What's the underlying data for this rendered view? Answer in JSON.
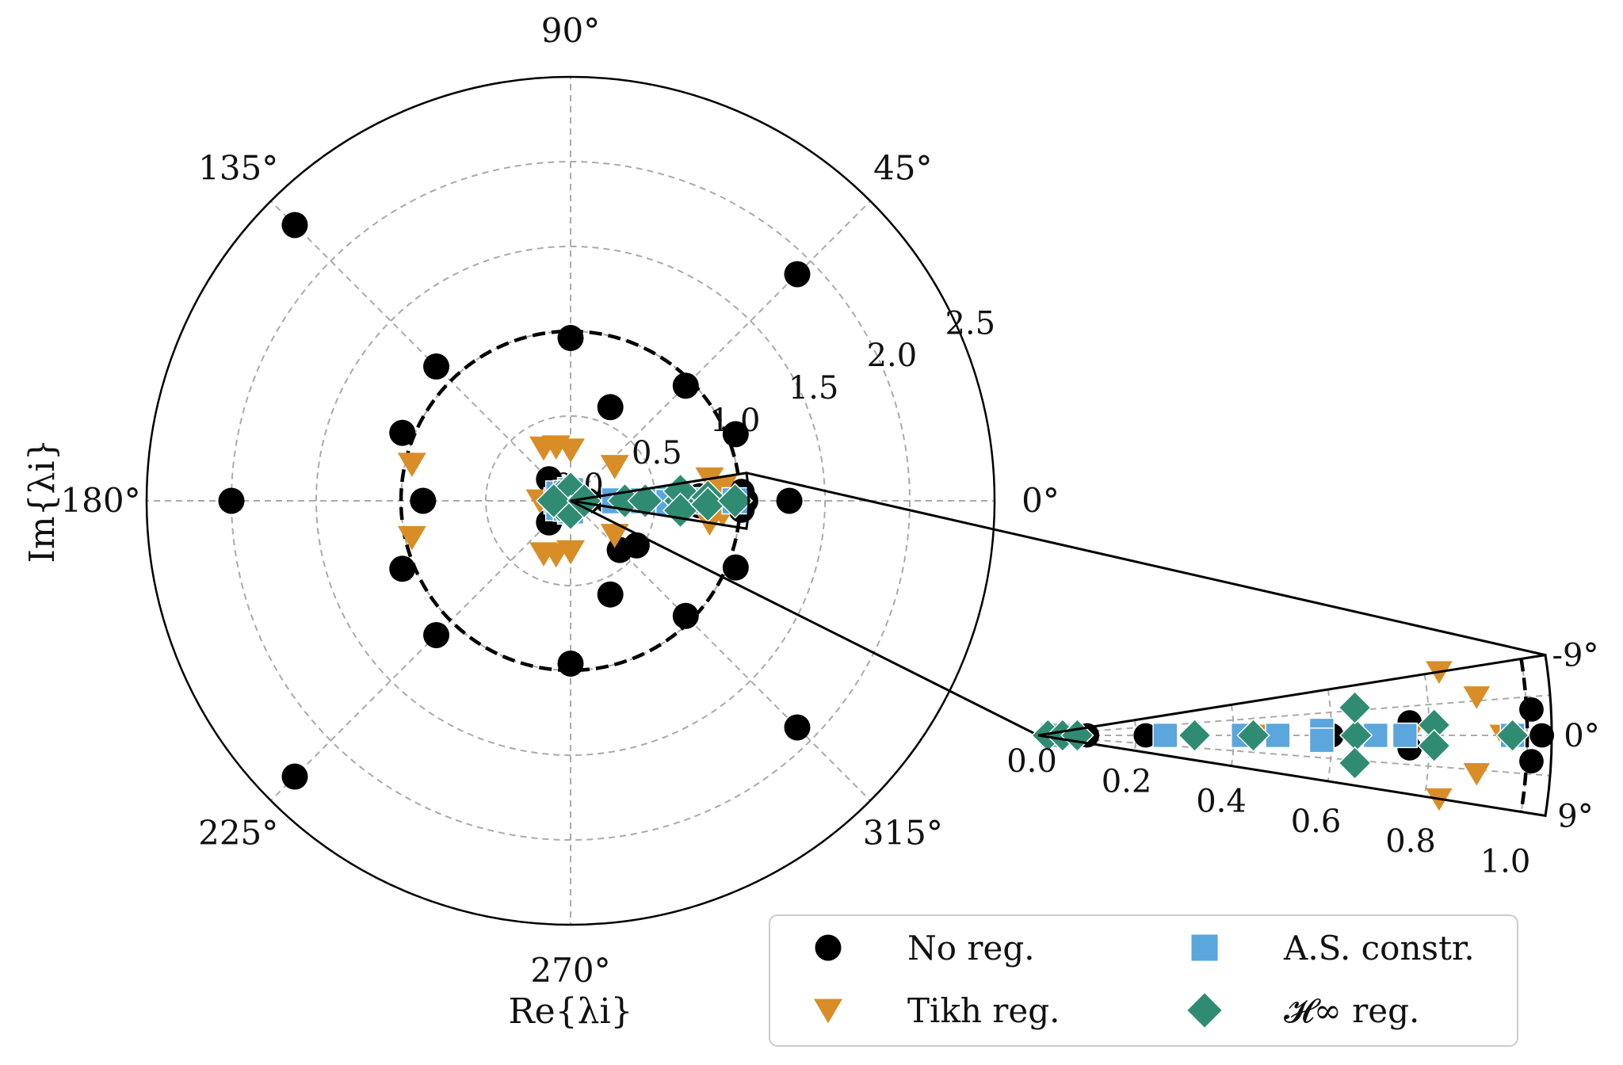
{
  "chart_data": {
    "type": "scatter",
    "projection": "polar",
    "xlabel": "Re{λi}",
    "ylabel": "Im{λi}",
    "main_axes": {
      "r_range": [
        0,
        2.5
      ],
      "r_ticks": [
        0.0,
        0.5,
        1.0,
        1.5,
        2.0,
        2.5
      ],
      "theta_ticks_deg": [
        0,
        45,
        90,
        135,
        180,
        225,
        270,
        315
      ],
      "grid": true,
      "unit_circle": true
    },
    "inset": {
      "r_range": [
        0,
        1.05
      ],
      "theta_range_deg": [
        -9,
        9
      ],
      "r_ticks": [
        0.0,
        0.2,
        0.4,
        0.6,
        0.8,
        1.0
      ],
      "theta_ticks_deg": [
        -9,
        0,
        9
      ],
      "unit_circle": true
    },
    "legend": {
      "placement": "lower right",
      "columns": 2
    },
    "series": [
      {
        "name": "No reg.",
        "marker": "circle",
        "color": "#000000",
        "points": [
          {
            "r": 2.3,
            "theta": 135
          },
          {
            "r": 2.3,
            "theta": 225
          },
          {
            "r": 1.89,
            "theta": 45
          },
          {
            "r": 1.89,
            "theta": 315
          },
          {
            "r": 2.0,
            "theta": 180
          },
          {
            "r": 1.12,
            "theta": 135
          },
          {
            "r": 1.12,
            "theta": 225
          },
          {
            "r": 0.96,
            "theta": 90
          },
          {
            "r": 0.96,
            "theta": 270
          },
          {
            "r": 0.96,
            "theta": 45
          },
          {
            "r": 0.96,
            "theta": 315
          },
          {
            "r": 1.07,
            "theta": 158
          },
          {
            "r": 1.07,
            "theta": 202
          },
          {
            "r": 0.87,
            "theta": 180
          },
          {
            "r": 1.05,
            "theta": 22
          },
          {
            "r": 1.05,
            "theta": 338
          },
          {
            "r": 1.29,
            "theta": 0
          },
          {
            "r": 0.6,
            "theta": 67
          },
          {
            "r": 0.6,
            "theta": 293
          },
          {
            "r": 0.47,
            "theta": 326
          },
          {
            "r": 0.41,
            "theta": 315
          },
          {
            "r": 0.18,
            "theta": 135
          },
          {
            "r": 0.18,
            "theta": 225
          },
          {
            "r": 0.1,
            "theta": 0
          },
          {
            "r": 1.01,
            "theta": 3
          },
          {
            "r": 1.01,
            "theta": -3
          },
          {
            "r": 1.03,
            "theta": 0
          },
          {
            "r": 0.76,
            "theta": 2
          },
          {
            "r": 0.76,
            "theta": -2
          },
          {
            "r": 0.6,
            "theta": 0
          },
          {
            "r": 0.22,
            "theta": 0
          }
        ]
      },
      {
        "name": "Tikh reg.",
        "marker": "triangle-down",
        "color": "#d98d27",
        "points": [
          {
            "r": 0.96,
            "theta": 167
          },
          {
            "r": 0.96,
            "theta": 193
          },
          {
            "r": 0.33,
            "theta": 105
          },
          {
            "r": 0.33,
            "theta": 255
          },
          {
            "r": 0.35,
            "theta": 117
          },
          {
            "r": 0.35,
            "theta": 243
          },
          {
            "r": 0.3,
            "theta": 90
          },
          {
            "r": 0.3,
            "theta": 270
          },
          {
            "r": 0.18,
            "theta": 180
          },
          {
            "r": 0.33,
            "theta": 38
          },
          {
            "r": 0.33,
            "theta": 322
          },
          {
            "r": 0.06,
            "theta": 150
          },
          {
            "r": 0.06,
            "theta": 210
          },
          {
            "r": 0.83,
            "theta": 9
          },
          {
            "r": 0.83,
            "theta": -9
          },
          {
            "r": 0.9,
            "theta": 5
          },
          {
            "r": 0.9,
            "theta": -5
          },
          {
            "r": 0.76,
            "theta": 0
          },
          {
            "r": 0.95,
            "theta": 0
          },
          {
            "r": 0.48,
            "theta": 0
          }
        ]
      },
      {
        "name": "A.S. constr.",
        "marker": "square",
        "color": "#5aa6dd",
        "points": [
          {
            "r": 0.03,
            "theta": 0
          },
          {
            "r": 0.04,
            "theta": 0
          },
          {
            "r": 0.06,
            "theta": 90
          },
          {
            "r": 0.06,
            "theta": 270
          },
          {
            "r": 0.08,
            "theta": 180
          },
          {
            "r": 0.08,
            "theta": 150
          },
          {
            "r": 0.08,
            "theta": 210
          },
          {
            "r": 0.05,
            "theta": 120
          },
          {
            "r": 0.05,
            "theta": 240
          },
          {
            "r": 0.26,
            "theta": 0
          },
          {
            "r": 0.42,
            "theta": 0
          },
          {
            "r": 0.49,
            "theta": 0
          },
          {
            "r": 0.58,
            "theta": 0
          },
          {
            "r": 0.58,
            "theta": 1
          },
          {
            "r": 0.58,
            "theta": -1
          },
          {
            "r": 0.69,
            "theta": 0
          },
          {
            "r": 0.75,
            "theta": 0
          },
          {
            "r": 0.97,
            "theta": 0
          }
        ]
      },
      {
        "name": "𝓗∞ reg.",
        "marker": "diamond",
        "color": "#2f8c72",
        "points": [
          {
            "r": 0.02,
            "theta": 0
          },
          {
            "r": 0.05,
            "theta": 0
          },
          {
            "r": 0.05,
            "theta": 30
          },
          {
            "r": 0.05,
            "theta": 330
          },
          {
            "r": 0.07,
            "theta": 160
          },
          {
            "r": 0.07,
            "theta": 200
          },
          {
            "r": 0.07,
            "theta": 90
          },
          {
            "r": 0.07,
            "theta": 270
          },
          {
            "r": 0.1,
            "theta": 180
          },
          {
            "r": 0.08,
            "theta": 0
          },
          {
            "r": 0.32,
            "theta": 0
          },
          {
            "r": 0.44,
            "theta": 0
          },
          {
            "r": 0.65,
            "theta": 0
          },
          {
            "r": 0.65,
            "theta": 5
          },
          {
            "r": 0.65,
            "theta": -5
          },
          {
            "r": 0.81,
            "theta": 1.5
          },
          {
            "r": 0.81,
            "theta": -1.5
          },
          {
            "r": 0.97,
            "theta": 0
          }
        ]
      }
    ]
  },
  "labels": {
    "theta_ticks": [
      "0°",
      "45°",
      "90°",
      "135°",
      "180°",
      "225°",
      "270°",
      "315°"
    ],
    "r_ticks": [
      "0.0",
      "0.5",
      "1.0",
      "1.5",
      "2.0",
      "2.5"
    ],
    "inset_r_ticks": [
      "0.0",
      "0.2",
      "0.4",
      "0.6",
      "0.8",
      "1.0"
    ],
    "inset_theta_ticks": [
      "9°",
      "0°",
      "-9°"
    ],
    "xlabel": "Re{λi}",
    "ylabel": "Im{λi}"
  }
}
